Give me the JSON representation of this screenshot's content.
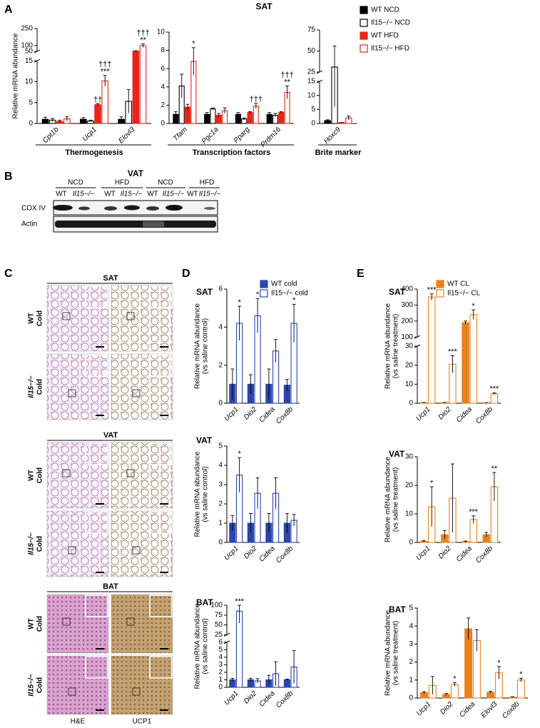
{
  "panel_letters": [
    "A",
    "B",
    "C",
    "D",
    "E"
  ],
  "panel_a_title": "SAT",
  "blot": {
    "title": "VAT",
    "groups": [
      "NCD",
      "HFD",
      "NCD",
      "HFD"
    ],
    "lanes": [
      "WT",
      "Il15−/−",
      "WT",
      "Il15−/−",
      "WT",
      "Il15−/−",
      "WT",
      "Il15−/−"
    ],
    "rows": [
      "COX IV",
      "Actin"
    ]
  },
  "histology": {
    "depots": [
      "SAT",
      "VAT",
      "BAT"
    ],
    "row_labels": [
      [
        "WT",
        "Cold"
      ],
      [
        "Il15−/−",
        "Cold"
      ]
    ],
    "stains": [
      "H&E",
      "UCP1"
    ]
  },
  "chart_data": [
    {
      "type": "bar",
      "group_label": "Thermogenesis",
      "y_label": "Relative mRNA abundance",
      "categories": [
        "Cpt1b",
        "Ucp1",
        "Elovl3"
      ],
      "y_segments": [
        {
          "ylim": [
            0,
            15
          ],
          "yticks": [
            0,
            5,
            10,
            15
          ]
        },
        {
          "ylim": [
            50,
            250
          ],
          "yticks": [
            50,
            100,
            250
          ]
        }
      ],
      "series": [
        {
          "name": "WT NCD",
          "color": "#000000",
          "fill": "#000000",
          "values": [
            1.0,
            1.0,
            1.0
          ],
          "errors": [
            0.5,
            0.4,
            0.6
          ]
        },
        {
          "name": "Il15−/− NCD",
          "color": "#000000",
          "fill": "#ffffff",
          "values": [
            0.8,
            0.6,
            5.3
          ],
          "errors": [
            0.4,
            0.2,
            2.8
          ]
        },
        {
          "name": "WT HFD",
          "color": "#e8251a",
          "fill": "#e8251a",
          "values": [
            0.5,
            4.5,
            52
          ],
          "errors": [
            0.3,
            0.3,
            3
          ],
          "annotations": [
            null,
            [
              "††"
            ],
            null
          ]
        },
        {
          "name": "Il15−/− HFD",
          "color": "#e8251a",
          "fill": "#ffffff",
          "values": [
            1.1,
            10.2,
            100
          ],
          "errors": [
            0.5,
            1.3,
            15
          ],
          "annotations": [
            null,
            [
              "***",
              "†††"
            ],
            [
              "**",
              "†††"
            ]
          ]
        }
      ]
    },
    {
      "type": "bar",
      "group_label": "Transcription factors",
      "categories": [
        "Tfam",
        "Pgc1a",
        "Pparg",
        "Prdm16"
      ],
      "ylim": [
        0,
        10
      ],
      "yticks": [
        0,
        2,
        4,
        6,
        8,
        10
      ],
      "series": [
        {
          "color": "#000000",
          "fill": "#000000",
          "values": [
            1.0,
            1.0,
            1.0,
            1.0
          ],
          "errors": [
            0.3,
            0.2,
            0.2,
            0.2
          ]
        },
        {
          "color": "#000000",
          "fill": "#ffffff",
          "values": [
            4.1,
            1.6,
            0.5,
            0.9
          ],
          "errors": [
            1.3,
            0.1,
            0.1,
            0.2
          ]
        },
        {
          "color": "#e8251a",
          "fill": "#e8251a",
          "values": [
            1.8,
            0.9,
            1.2,
            1.2
          ],
          "errors": [
            0.3,
            0.2,
            0.1,
            0.1
          ]
        },
        {
          "color": "#e8251a",
          "fill": "#ffffff",
          "values": [
            6.8,
            1.4,
            1.9,
            3.4
          ],
          "errors": [
            1.5,
            0.3,
            0.3,
            0.7
          ],
          "annotations": [
            [
              "*"
            ],
            null,
            [
              "†††"
            ],
            [
              "**",
              "†††"
            ]
          ]
        }
      ]
    },
    {
      "type": "bar",
      "group_label": "Brite marker",
      "categories": [
        "Hoxc9"
      ],
      "y_segments": [
        {
          "ylim": [
            0,
            15
          ],
          "yticks": [
            0,
            5,
            10,
            15
          ]
        },
        {
          "ylim": [
            25,
            75
          ],
          "yticks": [
            25,
            50,
            75
          ]
        }
      ],
      "series": [
        {
          "color": "#000000",
          "fill": "#000000",
          "values": [
            1.0
          ],
          "errors": [
            0.3
          ]
        },
        {
          "color": "#000000",
          "fill": "#ffffff",
          "values": [
            31
          ],
          "errors": [
            25
          ]
        },
        {
          "color": "#e8251a",
          "fill": "#e8251a",
          "values": [
            0.3
          ],
          "errors": [
            0.05
          ]
        },
        {
          "color": "#e8251a",
          "fill": "#ffffff",
          "values": [
            2.0
          ],
          "errors": [
            0.7
          ]
        }
      ]
    },
    {
      "type": "bar",
      "title": "SAT",
      "y_label": [
        "Relative mRNA abundance",
        "(vs saline control)"
      ],
      "categories": [
        "Ucp1",
        "Dio2",
        "Cidea",
        "Cox8b"
      ],
      "ylim": [
        0,
        6
      ],
      "yticks": [
        0,
        2,
        4,
        6
      ],
      "series": [
        {
          "name": "WT cold",
          "color": "#2a46a8",
          "fill": "#2a46a8",
          "values": [
            1.0,
            1.0,
            1.0,
            0.95
          ],
          "errors": [
            0.8,
            0.5,
            0.8,
            0.3
          ]
        },
        {
          "name": "Il15−/− cold",
          "color": "#2a46a8",
          "fill": "#ffffff",
          "values": [
            4.2,
            4.6,
            2.75,
            4.2
          ],
          "errors": [
            0.9,
            0.9,
            0.6,
            1.0
          ],
          "annotations": [
            [
              "*"
            ],
            [
              "*"
            ],
            null,
            [
              "*"
            ]
          ]
        }
      ]
    },
    {
      "type": "bar",
      "title": "VAT",
      "y_label": [
        "Relative mRNA abundance",
        "(vs saline control)"
      ],
      "categories": [
        "Ucp1",
        "Dio2",
        "Cidea",
        "Cox8b"
      ],
      "ylim": [
        0,
        5
      ],
      "yticks": [
        0,
        1,
        2,
        3,
        4,
        5
      ],
      "series": [
        {
          "color": "#2a46a8",
          "fill": "#2a46a8",
          "values": [
            1.0,
            1.0,
            1.0,
            1.0
          ],
          "errors": [
            0.4,
            0.5,
            0.5,
            0.5
          ]
        },
        {
          "color": "#2a46a8",
          "fill": "#ffffff",
          "values": [
            3.5,
            2.55,
            2.55,
            1.15
          ],
          "errors": [
            0.9,
            0.8,
            0.8,
            0.3
          ],
          "annotations": [
            [
              "*"
            ],
            null,
            null,
            null
          ]
        }
      ]
    },
    {
      "type": "bar",
      "title": "BAT",
      "y_label": [
        "Relative mRNA abundance",
        "(vs saline control)"
      ],
      "categories": [
        "Ucp1",
        "Dio2",
        "Cidea",
        "Cox8b"
      ],
      "y_segments": [
        {
          "ylim": [
            0,
            6
          ],
          "yticks": [
            0,
            1,
            2,
            3,
            4,
            5,
            6
          ]
        },
        {
          "ylim": [
            25,
            100
          ],
          "yticks": [
            25,
            50,
            75,
            100
          ]
        }
      ],
      "series": [
        {
          "color": "#2a46a8",
          "fill": "#2a46a8",
          "values": [
            1.0,
            1.0,
            1.0,
            1.0
          ],
          "errors": [
            0.2,
            0.2,
            0.6,
            0.1
          ]
        },
        {
          "color": "#2a46a8",
          "fill": "#ffffff",
          "values": [
            85,
            0.85,
            1.8,
            2.7
          ],
          "errors": [
            30,
            0.3,
            1.6,
            2.2
          ],
          "annotations": [
            [
              "***"
            ],
            null,
            null,
            null
          ]
        }
      ]
    },
    {
      "type": "bar",
      "title": "SAT",
      "y_label": [
        "Relative mRNA abundance",
        "(vs saline treatment)"
      ],
      "categories": [
        "Ucp1",
        "Dio2",
        "Cidea",
        "Cox8b"
      ],
      "y_segments": [
        {
          "ylim": [
            0,
            30
          ],
          "yticks": [
            0,
            10,
            20,
            30
          ]
        },
        {
          "ylim": [
            100,
            400
          ],
          "yticks": [
            100,
            200,
            300,
            400
          ]
        }
      ],
      "series": [
        {
          "name": "WT CL",
          "color": "#e8821e",
          "fill": "#e8821e",
          "values": [
            0.3,
            0.3,
            190,
            0.2
          ],
          "errors": [
            0.1,
            0.1,
            10,
            0.1
          ]
        },
        {
          "name": "Il15−/− CL",
          "color": "#e8821e",
          "fill": "#ffffff",
          "values": [
            350,
            20.5,
            240,
            5
          ],
          "errors": [
            20,
            4.5,
            30,
            0.5
          ],
          "annotations": [
            [
              "***"
            ],
            [
              "***"
            ],
            [
              "*"
            ],
            [
              "***"
            ]
          ]
        }
      ]
    },
    {
      "type": "bar",
      "title": "VAT",
      "y_label": [
        "Relative mRNA abundance",
        "(vs saline treatment)"
      ],
      "categories": [
        "Ucp1",
        "Dio2",
        "Cidea",
        "Cox8b"
      ],
      "ylim": [
        0,
        30
      ],
      "yticks": [
        0,
        10,
        20,
        30
      ],
      "series": [
        {
          "color": "#e8821e",
          "fill": "#e8821e",
          "values": [
            0.4,
            2.7,
            0.3,
            2.7
          ],
          "errors": [
            0.3,
            1.5,
            0.2,
            0.8
          ]
        },
        {
          "color": "#e8821e",
          "fill": "#ffffff",
          "values": [
            12.5,
            15.5,
            8,
            19.5
          ],
          "errors": [
            7,
            12,
            1.3,
            5
          ],
          "annotations": [
            [
              "*"
            ],
            null,
            [
              "***"
            ],
            [
              "**"
            ]
          ]
        }
      ]
    },
    {
      "type": "bar",
      "title": "BAT",
      "y_label": [
        "Relative mRNA abundance",
        "(vs saline treatment)"
      ],
      "categories": [
        "Ucp1",
        "Dio2",
        "Cidea",
        "Elovl3",
        "Cox8b"
      ],
      "ylim": [
        0,
        5
      ],
      "yticks": [
        0,
        1,
        2,
        3,
        4,
        5
      ],
      "series": [
        {
          "color": "#e8821e",
          "fill": "#e8821e",
          "values": [
            0.3,
            0.2,
            3.85,
            0.32,
            0.05
          ],
          "errors": [
            0.05,
            0.05,
            0.6,
            0.05,
            0.02
          ]
        },
        {
          "color": "#e8821e",
          "fill": "#ffffff",
          "values": [
            0.7,
            0.75,
            3.2,
            1.4,
            1.0
          ],
          "errors": [
            0.5,
            0.1,
            0.6,
            0.35,
            0.1
          ],
          "annotations": [
            null,
            [
              "*"
            ],
            null,
            [
              "*"
            ],
            [
              "*"
            ]
          ]
        }
      ]
    }
  ]
}
